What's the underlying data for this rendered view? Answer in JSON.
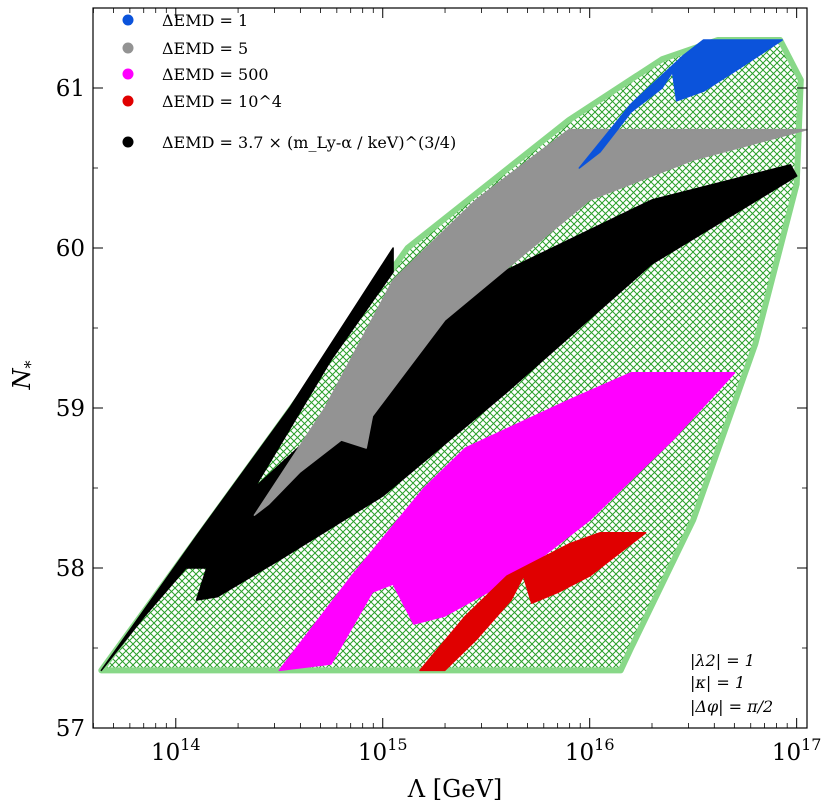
{
  "chart_data": {
    "type": "area",
    "xlabel": "Λ [GeV]",
    "ylabel": "N*",
    "xscale": "log",
    "xlim_log10": [
      13.6,
      17.05
    ],
    "ylim": [
      57,
      61.5
    ],
    "x_ticks": [
      {
        "exp": 14,
        "label": "10",
        "sup": "14"
      },
      {
        "exp": 15,
        "label": "10",
        "sup": "15"
      },
      {
        "exp": 16,
        "label": "10",
        "sup": "16"
      },
      {
        "exp": 17,
        "label": "10",
        "sup": "17"
      }
    ],
    "y_ticks": [
      57,
      58,
      59,
      60,
      61
    ],
    "legend_position": "top-left",
    "annotations": [
      "|λ2| = 1",
      "|κ| = 1",
      "|Δφ| = π/2"
    ],
    "hatched_region": {
      "name": "allowed region",
      "color": "#88d888",
      "hatch_color": "#2aa02a",
      "polygon": [
        [
          13.64,
          57.36
        ],
        [
          15.12,
          60.0
        ],
        [
          15.9,
          60.8
        ],
        [
          16.35,
          61.18
        ],
        [
          16.62,
          61.3
        ],
        [
          16.92,
          61.3
        ],
        [
          17.02,
          61.05
        ],
        [
          17.0,
          60.4
        ],
        [
          16.8,
          59.4
        ],
        [
          16.5,
          58.3
        ],
        [
          16.2,
          57.5
        ],
        [
          16.15,
          57.36
        ],
        [
          13.64,
          57.36
        ]
      ]
    },
    "series": [
      {
        "name": "ΔEMD = 3.7 × (m_Ly-α / keV)^(3/4)",
        "color": "#000000",
        "polygon": [
          [
            13.64,
            57.36
          ],
          [
            14.1,
            58.2
          ],
          [
            14.55,
            59.0
          ],
          [
            14.85,
            59.6
          ],
          [
            15.05,
            60.0
          ],
          [
            15.05,
            59.85
          ],
          [
            14.75,
            59.3
          ],
          [
            14.38,
            58.5
          ],
          [
            14.8,
            59.0
          ],
          [
            15.5,
            59.8
          ],
          [
            16.3,
            60.3
          ],
          [
            16.97,
            60.52
          ],
          [
            17.0,
            60.45
          ],
          [
            16.3,
            59.9
          ],
          [
            15.6,
            59.1
          ],
          [
            15.0,
            58.45
          ],
          [
            14.5,
            58.05
          ],
          [
            14.2,
            57.82
          ],
          [
            14.1,
            57.8
          ],
          [
            14.15,
            58.0
          ],
          [
            14.05,
            58.0
          ],
          [
            13.85,
            57.7
          ],
          [
            13.64,
            57.36
          ]
        ]
      },
      {
        "name": "ΔEMD = 5",
        "color": "#939393",
        "polygon": [
          [
            14.38,
            58.33
          ],
          [
            14.72,
            59.0
          ],
          [
            15.05,
            59.8
          ],
          [
            15.45,
            60.3
          ],
          [
            15.9,
            60.74
          ],
          [
            17.05,
            60.74
          ],
          [
            16.5,
            60.55
          ],
          [
            16.0,
            60.3
          ],
          [
            15.3,
            59.55
          ],
          [
            14.95,
            58.95
          ],
          [
            14.92,
            58.75
          ],
          [
            14.8,
            58.8
          ],
          [
            14.6,
            58.6
          ],
          [
            14.45,
            58.4
          ],
          [
            14.38,
            58.33
          ]
        ]
      },
      {
        "name": "ΔEMD = 500",
        "color": "#ff00ff",
        "polygon": [
          [
            14.5,
            57.36
          ],
          [
            14.85,
            57.95
          ],
          [
            15.2,
            58.5
          ],
          [
            15.4,
            58.75
          ],
          [
            15.9,
            59.05
          ],
          [
            16.2,
            59.22
          ],
          [
            16.7,
            59.22
          ],
          [
            16.4,
            58.8
          ],
          [
            16.0,
            58.3
          ],
          [
            15.65,
            57.95
          ],
          [
            15.3,
            57.7
          ],
          [
            15.15,
            57.65
          ],
          [
            15.05,
            57.9
          ],
          [
            14.95,
            57.85
          ],
          [
            14.75,
            57.4
          ],
          [
            14.5,
            57.36
          ]
        ]
      },
      {
        "name": "ΔEMD = 10^4",
        "color": "#e00000",
        "polygon": [
          [
            15.18,
            57.36
          ],
          [
            15.4,
            57.7
          ],
          [
            15.6,
            57.95
          ],
          [
            15.9,
            58.15
          ],
          [
            16.05,
            58.22
          ],
          [
            16.27,
            58.22
          ],
          [
            16.0,
            57.95
          ],
          [
            15.85,
            57.85
          ],
          [
            15.72,
            57.78
          ],
          [
            15.68,
            57.95
          ],
          [
            15.62,
            57.8
          ],
          [
            15.45,
            57.55
          ],
          [
            15.3,
            57.36
          ],
          [
            15.18,
            57.36
          ]
        ]
      },
      {
        "name": "ΔEMD = 1",
        "color": "#0b53db",
        "polygon": [
          [
            15.95,
            60.5
          ],
          [
            16.2,
            60.9
          ],
          [
            16.45,
            61.2
          ],
          [
            16.55,
            61.3
          ],
          [
            16.93,
            61.3
          ],
          [
            16.72,
            61.12
          ],
          [
            16.55,
            60.98
          ],
          [
            16.42,
            60.92
          ],
          [
            16.4,
            61.1
          ],
          [
            16.35,
            61.0
          ],
          [
            16.2,
            60.85
          ],
          [
            16.05,
            60.6
          ],
          [
            15.95,
            60.5
          ]
        ]
      }
    ]
  },
  "legend": [
    {
      "color": "#0b53db",
      "label": "ΔEMD = 1"
    },
    {
      "color": "#939393",
      "label": "ΔEMD = 5"
    },
    {
      "color": "#ff00ff",
      "label": "ΔEMD = 500"
    },
    {
      "color": "#e00000",
      "label": "ΔEMD = 10^4"
    },
    {
      "color": "#000000",
      "label": "ΔEMD = 3.7 × (m_Ly-α / keV)^(3/4)"
    }
  ]
}
